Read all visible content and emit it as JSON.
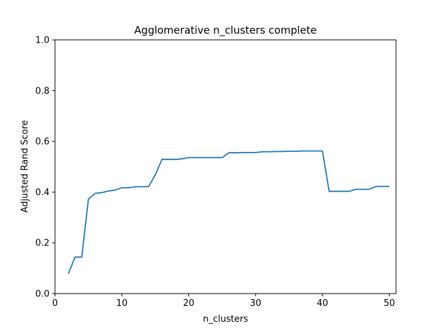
{
  "chart_data": {
    "type": "line",
    "title": "Agglomerative n_clusters complete",
    "xlabel": "n_clusters",
    "ylabel": "Adjusted Rand Score",
    "xlim": [
      0,
      51
    ],
    "ylim": [
      0.0,
      1.0
    ],
    "xticks": [
      0,
      10,
      20,
      30,
      40,
      50
    ],
    "xtick_labels": [
      "0",
      "10",
      "20",
      "30",
      "40",
      "50"
    ],
    "yticks": [
      0.0,
      0.2,
      0.4,
      0.6,
      0.8,
      1.0
    ],
    "ytick_labels": [
      "0.0",
      "0.2",
      "0.4",
      "0.6",
      "0.8",
      "1.0"
    ],
    "grid": false,
    "line_color": "#1f77b4",
    "series": [
      {
        "x": [
          2,
          3,
          4,
          5,
          6,
          7,
          8,
          9,
          10,
          11,
          12,
          13,
          14,
          15,
          16,
          17,
          18,
          19,
          20,
          21,
          22,
          23,
          24,
          25,
          26,
          27,
          28,
          29,
          30,
          31,
          32,
          33,
          34,
          35,
          36,
          37,
          38,
          39,
          40,
          41,
          42,
          43,
          44,
          45,
          46,
          47,
          48,
          49,
          50
        ],
        "values": [
          0.078,
          0.144,
          0.144,
          0.372,
          0.395,
          0.398,
          0.404,
          0.408,
          0.417,
          0.417,
          0.421,
          0.421,
          0.422,
          0.468,
          0.529,
          0.529,
          0.529,
          0.531,
          0.536,
          0.536,
          0.536,
          0.536,
          0.536,
          0.536,
          0.555,
          0.555,
          0.556,
          0.556,
          0.556,
          0.559,
          0.559,
          0.56,
          0.56,
          0.561,
          0.561,
          0.562,
          0.562,
          0.562,
          0.562,
          0.403,
          0.403,
          0.403,
          0.403,
          0.411,
          0.411,
          0.411,
          0.422,
          0.422,
          0.422
        ]
      }
    ]
  }
}
